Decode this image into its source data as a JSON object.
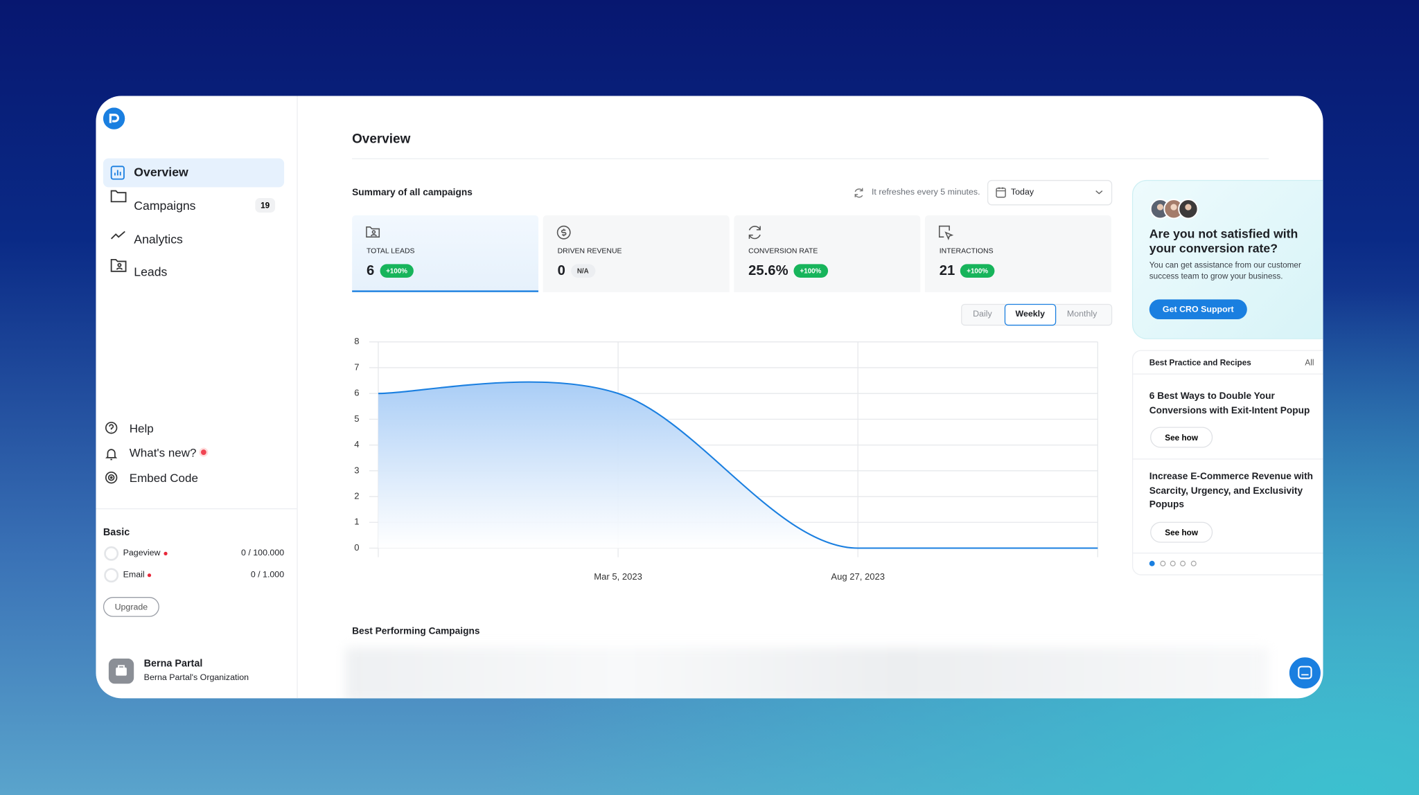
{
  "sidebar": {
    "nav": [
      {
        "label": "Overview"
      },
      {
        "label": "Campaigns",
        "badge": 19
      },
      {
        "label": "Analytics"
      },
      {
        "label": "Leads"
      }
    ],
    "links": [
      "Help",
      "What's new?",
      "Embed Code"
    ],
    "plan": {
      "name": "Basic",
      "usage": [
        {
          "label": "Pageview",
          "value": "0 / 100.000"
        },
        {
          "label": "Email",
          "value": "0 / 1.000"
        }
      ],
      "button": "Upgrade"
    },
    "user": {
      "name": "Berna Partal",
      "org": "Berna Partal's Organization"
    }
  },
  "header": {
    "title": "Overview"
  },
  "summary": {
    "title": "Summary of all campaigns",
    "refresh": "It refreshes every 5 minutes.",
    "range": "Today",
    "cards": [
      {
        "label": "TOTAL LEADS",
        "value": "6",
        "change": "+100%"
      },
      {
        "label": "DRIVEN REVENUE",
        "value": "0",
        "change": "N/A"
      },
      {
        "label": "CONVERSION RATE",
        "value": "25.6%",
        "change": "+100%"
      },
      {
        "label": "INTERACTIONS",
        "value": "21",
        "change": "+100%"
      }
    ],
    "periods": [
      "Daily",
      "Weekly",
      "Monthly"
    ]
  },
  "chart_data": {
    "type": "area",
    "categories": [
      null,
      "Mar 5, 2023",
      "Aug 27, 2023",
      null
    ],
    "values": [
      6,
      6,
      0,
      0
    ],
    "color": "#1a7fe0",
    "ylim": [
      0,
      8
    ],
    "yticks": [
      0,
      1,
      2,
      3,
      4,
      5,
      6,
      7,
      8
    ],
    "grid": true
  },
  "campaigns": {
    "title": "Best Performing Campaigns"
  },
  "promo": {
    "title": "Are you not satisfied with your conversion rate?",
    "text": "You can get assistance from our customer success team to grow your business.",
    "button": "Get CRO Support"
  },
  "recipes": {
    "title": "Best Practice and Recipes",
    "all": "All",
    "items": [
      {
        "title": "6 Best Ways to Double Your Conversions with Exit-Intent Popup",
        "button": "See how"
      },
      {
        "title": "Increase E-Commerce Revenue with Scarcity, Urgency, and Exclusivity Popups",
        "button": "See how"
      }
    ]
  }
}
